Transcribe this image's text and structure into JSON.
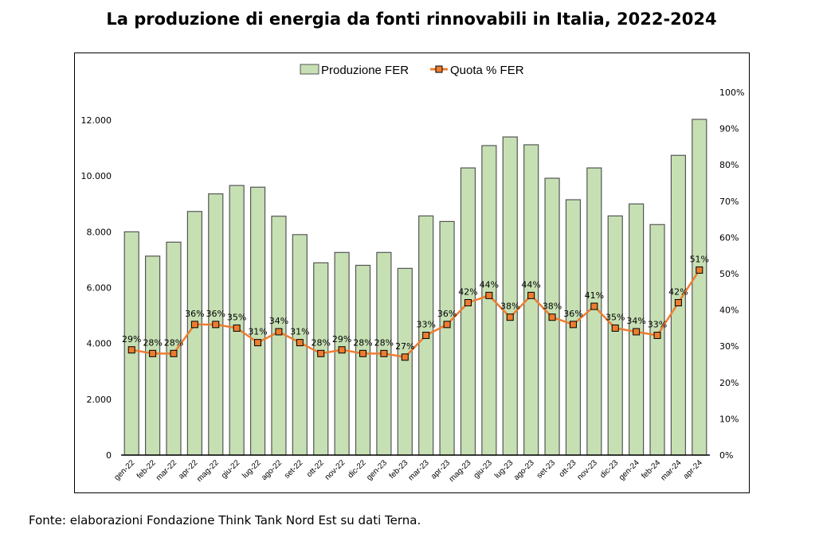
{
  "title": "La produzione di energia da fonti rinnovabili in Italia, 2022-2024",
  "source": "Fonte: elaborazioni Fondazione Think Tank Nord Est su dati Terna.",
  "colors": {
    "bar_fill": "#c6e0b4",
    "bar_stroke": "#555555",
    "line": "#ed7d31",
    "marker_fill": "#ed7d31",
    "marker_stroke": "#000000"
  },
  "chart_data": {
    "type": "bar+line",
    "title": "La produzione di energia da fonti rinnovabili in Italia, 2022-2024",
    "xlabel": "",
    "ylabel_left": "",
    "ylabel_right": "",
    "legend_position": "top-center",
    "grid": false,
    "categories": [
      "gen-22",
      "feb-22",
      "mar-22",
      "apr-22",
      "mag-22",
      "giu-22",
      "lug-22",
      "ago-22",
      "set-22",
      "ott-22",
      "nov-22",
      "dic-22",
      "gen-23",
      "feb-23",
      "mar-23",
      "apr-23",
      "mag-23",
      "giu-23",
      "lug-23",
      "ago-23",
      "set-23",
      "ott-23",
      "nov-23",
      "dic-23",
      "gen-24",
      "feb-24",
      "mar-24",
      "apr-24"
    ],
    "left_axis": {
      "range": [
        0,
        13000
      ],
      "ticks": [
        0,
        2000,
        4000,
        6000,
        8000,
        10000,
        12000
      ],
      "tick_labels": [
        "0",
        "2.000",
        "4.000",
        "6.000",
        "8.000",
        "10.000",
        "12.000"
      ]
    },
    "right_axis": {
      "range": [
        0,
        100
      ],
      "ticks": [
        0,
        10,
        20,
        30,
        40,
        50,
        60,
        70,
        80,
        90,
        100
      ],
      "tick_labels": [
        "0%",
        "10%",
        "20%",
        "30%",
        "40%",
        "50%",
        "60%",
        "70%",
        "80%",
        "90%",
        "100%"
      ]
    },
    "series": [
      {
        "name": "Produzione FER",
        "type": "bar",
        "axis": "left",
        "values": [
          8000,
          7130,
          7630,
          8730,
          9360,
          9660,
          9600,
          8560,
          7900,
          6890,
          7260,
          6800,
          7260,
          6690,
          8570,
          8370,
          10290,
          11090,
          11400,
          11120,
          9920,
          9150,
          10290,
          8570,
          9000,
          8260,
          10740,
          12030
        ]
      },
      {
        "name": "Quota % FER",
        "type": "line",
        "axis": "right",
        "values": [
          29,
          28,
          28,
          36,
          36,
          35,
          31,
          34,
          31,
          28,
          29,
          28,
          28,
          27,
          33,
          36,
          42,
          44,
          38,
          44,
          38,
          36,
          41,
          35,
          34,
          33,
          42,
          51
        ],
        "data_labels": [
          "29%",
          "28%",
          "28%",
          "36%",
          "36%",
          "35%",
          "31%",
          "34%",
          "31%",
          "28%",
          "29%",
          "28%",
          "28%",
          "27%",
          "33%",
          "36%",
          "42%",
          "44%",
          "38%",
          "44%",
          "38%",
          "36%",
          "41%",
          "35%",
          "34%",
          "33%",
          "42%",
          "51%"
        ]
      }
    ]
  }
}
